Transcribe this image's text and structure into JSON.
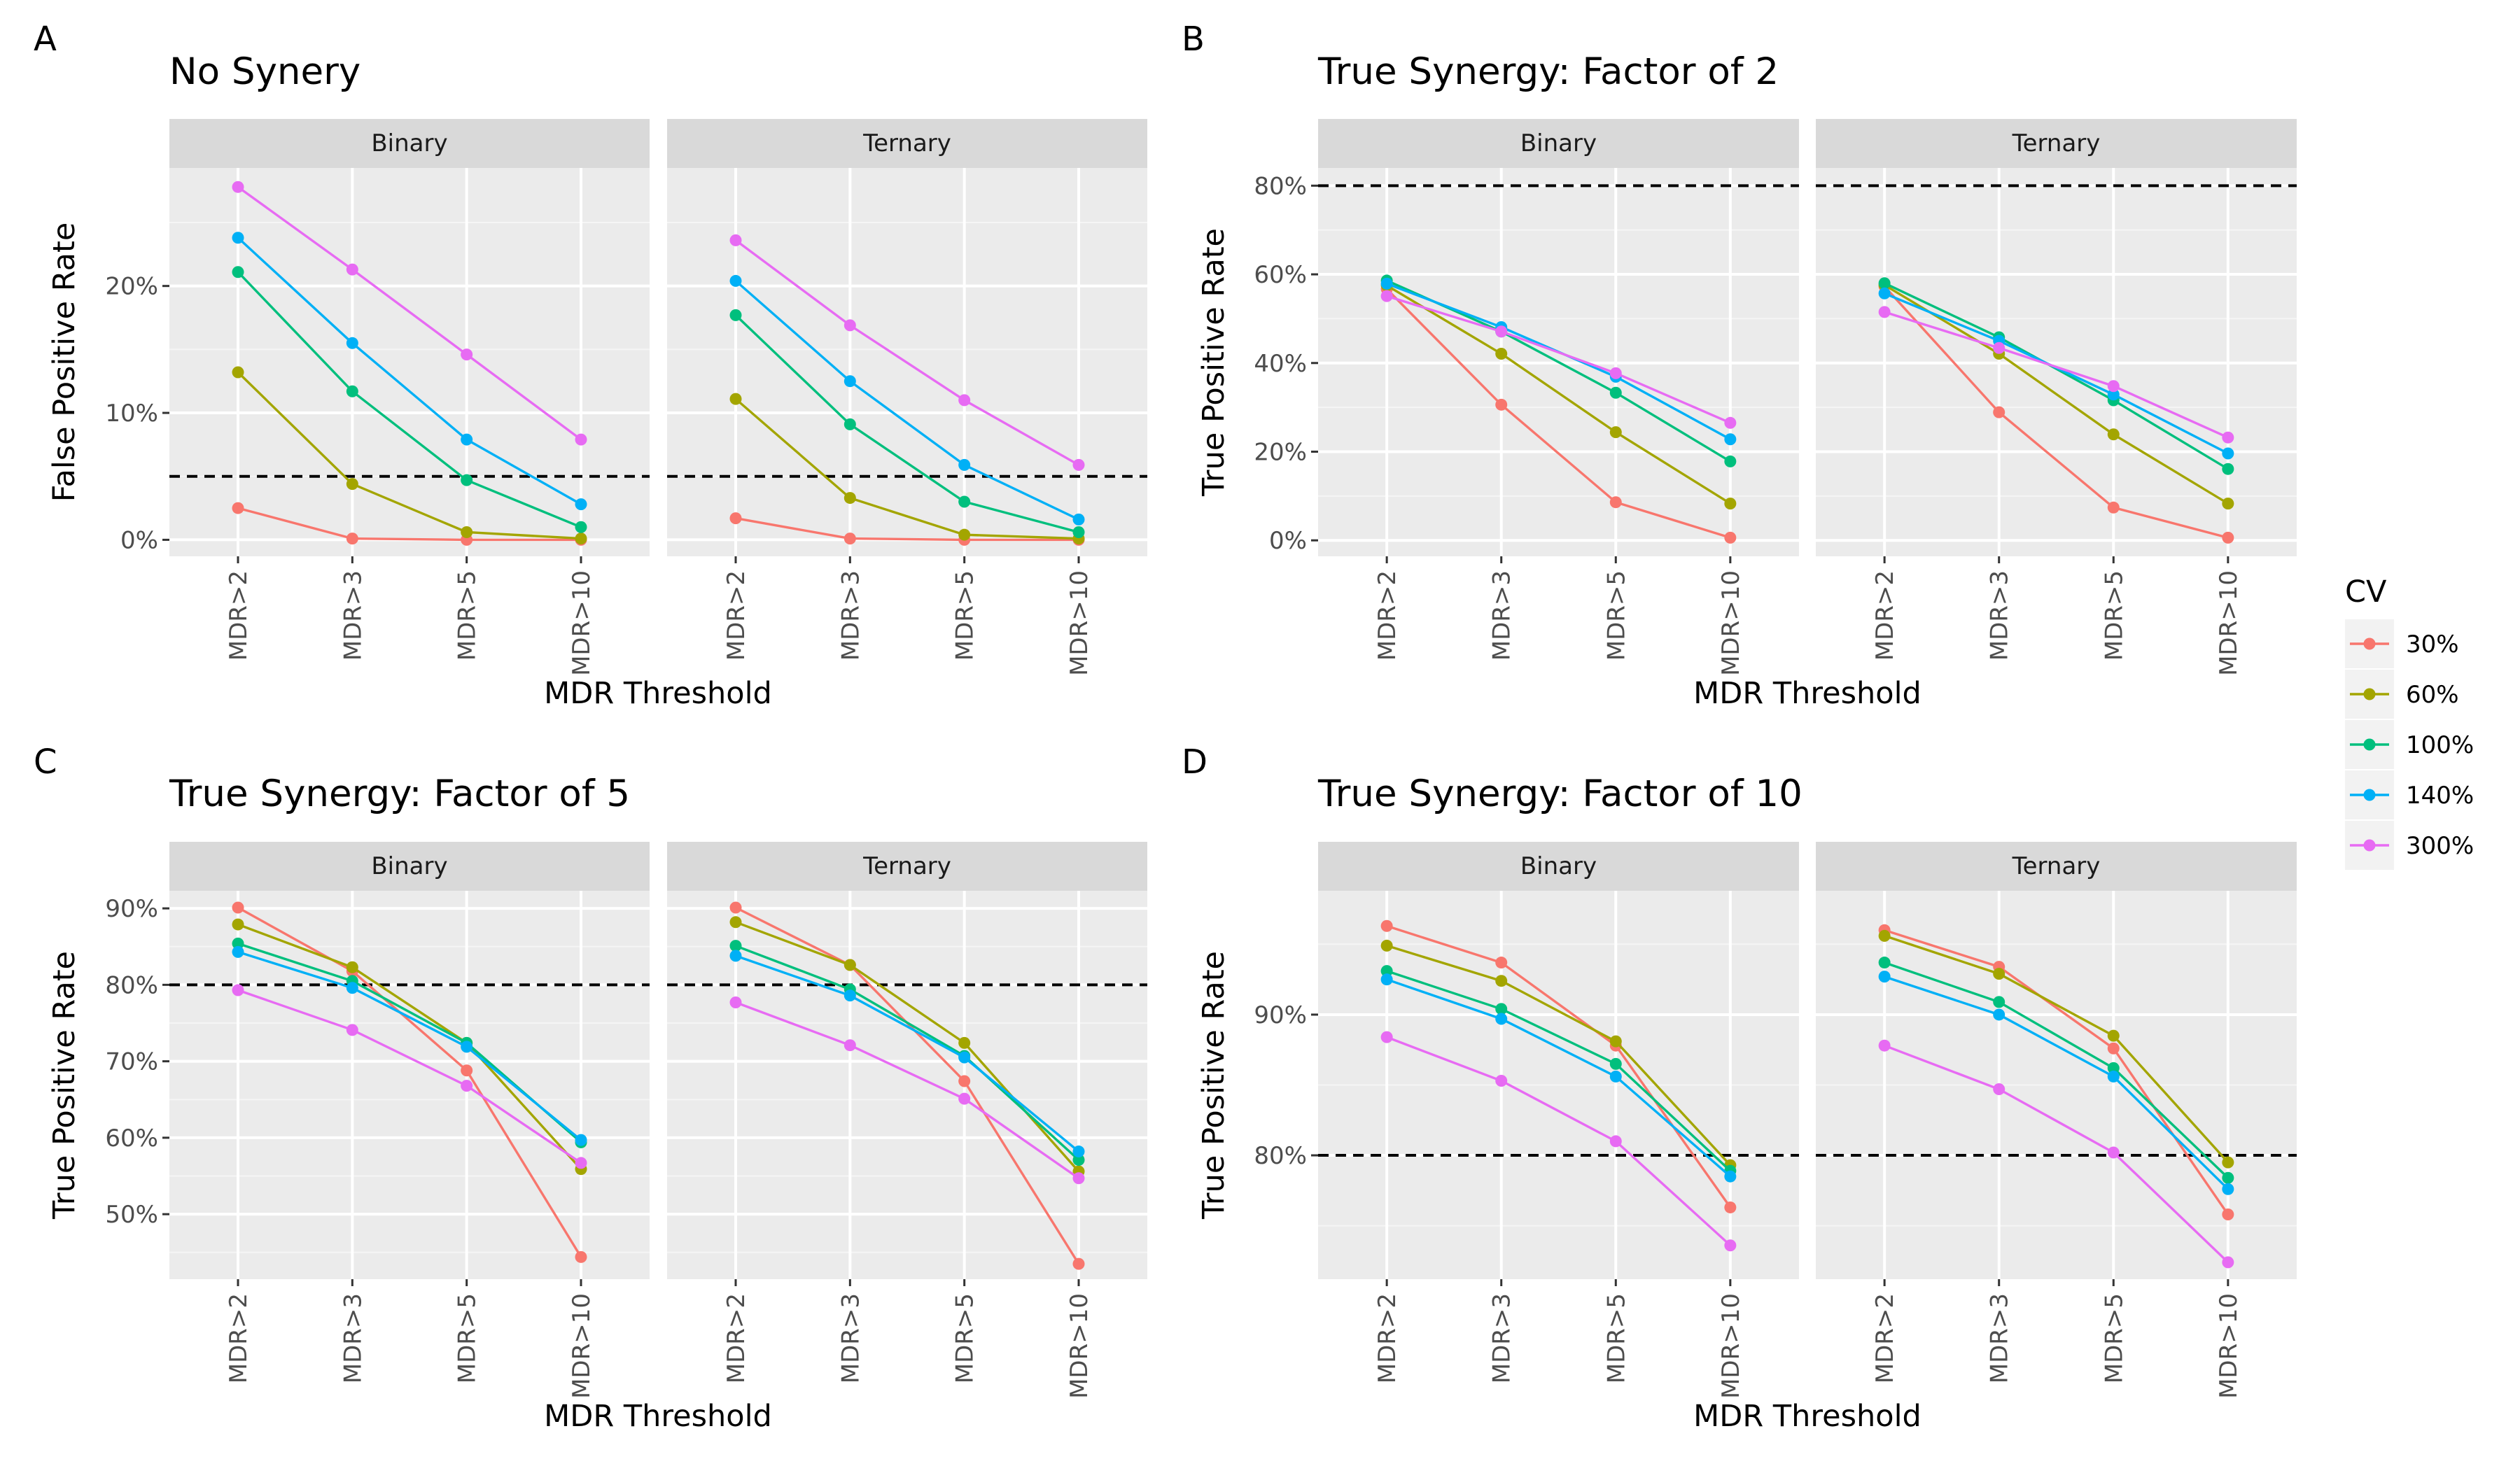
{
  "legend": {
    "title": "CV",
    "entries": [
      {
        "label": "30%",
        "color": "#F8766D"
      },
      {
        "label": "60%",
        "color": "#A3A500"
      },
      {
        "label": "100%",
        "color": "#00BF7D"
      },
      {
        "label": "140%",
        "color": "#00B0F6"
      },
      {
        "label": "300%",
        "color": "#E76BF3"
      }
    ]
  },
  "chart_data": [
    {
      "type": "line",
      "tag": "A",
      "title": "No Synery",
      "xlabel": "MDR Threshold",
      "ylabel": "False Positive Rate",
      "categories": [
        "MDR>2",
        "MDR>3",
        "MDR>5",
        "MDR>10"
      ],
      "ylim": [
        -1.3,
        29.3
      ],
      "yticks": [
        0,
        10,
        20
      ],
      "ytick_labels": [
        "0%",
        "10%",
        "20%"
      ],
      "reference_line": 5,
      "grid": true,
      "panels": [
        {
          "strip": "Binary",
          "series": [
            {
              "name": "30%",
              "values": [
                2.5,
                0.1,
                0.0,
                0.0
              ]
            },
            {
              "name": "60%",
              "values": [
                13.2,
                4.4,
                0.6,
                0.1
              ]
            },
            {
              "name": "100%",
              "values": [
                21.1,
                11.7,
                4.7,
                1.0
              ]
            },
            {
              "name": "140%",
              "values": [
                23.8,
                15.5,
                7.9,
                2.8
              ]
            },
            {
              "name": "300%",
              "values": [
                27.8,
                21.3,
                14.6,
                7.9
              ]
            }
          ]
        },
        {
          "strip": "Ternary",
          "series": [
            {
              "name": "30%",
              "values": [
                1.7,
                0.1,
                0.0,
                0.0
              ]
            },
            {
              "name": "60%",
              "values": [
                11.1,
                3.3,
                0.4,
                0.1
              ]
            },
            {
              "name": "100%",
              "values": [
                17.7,
                9.1,
                3.0,
                0.6
              ]
            },
            {
              "name": "140%",
              "values": [
                20.4,
                12.5,
                5.9,
                1.6
              ]
            },
            {
              "name": "300%",
              "values": [
                23.6,
                16.9,
                11.0,
                5.9
              ]
            }
          ]
        }
      ]
    },
    {
      "type": "line",
      "tag": "B",
      "title": "True Synergy: Factor of 2",
      "xlabel": "MDR Threshold",
      "ylabel": "True Positive Rate",
      "categories": [
        "MDR>2",
        "MDR>3",
        "MDR>5",
        "MDR>10"
      ],
      "ylim": [
        -3.6,
        84.0
      ],
      "yticks": [
        0,
        20,
        40,
        60,
        80
      ],
      "ytick_labels": [
        "0%",
        "20%",
        "40%",
        "60%",
        "80%"
      ],
      "reference_line": 80,
      "grid": true,
      "panels": [
        {
          "strip": "Binary",
          "series": [
            {
              "name": "30%",
              "values": [
                56.7,
                30.6,
                8.6,
                0.6
              ]
            },
            {
              "name": "60%",
              "values": [
                57.5,
                42.1,
                24.4,
                8.3
              ]
            },
            {
              "name": "100%",
              "values": [
                58.6,
                47.1,
                33.3,
                17.8
              ]
            },
            {
              "name": "140%",
              "values": [
                57.9,
                48.1,
                36.9,
                22.8
              ]
            },
            {
              "name": "300%",
              "values": [
                55.1,
                47.1,
                37.7,
                26.5
              ]
            }
          ]
        },
        {
          "strip": "Ternary",
          "series": [
            {
              "name": "30%",
              "values": [
                57.3,
                28.9,
                7.4,
                0.6
              ]
            },
            {
              "name": "60%",
              "values": [
                57.6,
                42.1,
                23.9,
                8.3
              ]
            },
            {
              "name": "100%",
              "values": [
                58.0,
                45.8,
                31.6,
                16.1
              ]
            },
            {
              "name": "140%",
              "values": [
                55.7,
                45.0,
                32.9,
                19.6
              ]
            },
            {
              "name": "300%",
              "values": [
                51.5,
                43.4,
                34.8,
                23.2
              ]
            }
          ]
        }
      ]
    },
    {
      "type": "line",
      "tag": "C",
      "title": "True Synergy: Factor of 5",
      "xlabel": "MDR Threshold",
      "ylabel": "True Positive Rate",
      "categories": [
        "MDR>2",
        "MDR>3",
        "MDR>5",
        "MDR>10"
      ],
      "ylim": [
        41.5,
        92.3
      ],
      "yticks": [
        50,
        60,
        70,
        80,
        90
      ],
      "ytick_labels": [
        "50%",
        "60%",
        "70%",
        "80%",
        "90%"
      ],
      "reference_line": 80,
      "grid": true,
      "panels": [
        {
          "strip": "Binary",
          "series": [
            {
              "name": "30%",
              "values": [
                90.1,
                81.8,
                68.8,
                44.4
              ]
            },
            {
              "name": "60%",
              "values": [
                87.9,
                82.3,
                72.4,
                55.9
              ]
            },
            {
              "name": "100%",
              "values": [
                85.4,
                80.5,
                72.4,
                59.4
              ]
            },
            {
              "name": "140%",
              "values": [
                84.3,
                79.6,
                71.9,
                59.7
              ]
            },
            {
              "name": "300%",
              "values": [
                79.3,
                74.1,
                66.8,
                56.7
              ]
            }
          ]
        },
        {
          "strip": "Ternary",
          "series": [
            {
              "name": "30%",
              "values": [
                90.1,
                82.6,
                67.4,
                43.5
              ]
            },
            {
              "name": "60%",
              "values": [
                88.2,
                82.6,
                72.4,
                55.6
              ]
            },
            {
              "name": "100%",
              "values": [
                85.1,
                79.4,
                70.7,
                57.1
              ]
            },
            {
              "name": "140%",
              "values": [
                83.8,
                78.6,
                70.5,
                58.2
              ]
            },
            {
              "name": "300%",
              "values": [
                77.7,
                72.1,
                65.1,
                54.7
              ]
            }
          ]
        }
      ]
    },
    {
      "type": "line",
      "tag": "D",
      "title": "True Synergy: Factor of 10",
      "xlabel": "MDR Threshold",
      "ylabel": "True Positive Rate",
      "categories": [
        "MDR>2",
        "MDR>3",
        "MDR>5",
        "MDR>10"
      ],
      "ylim": [
        71.2,
        98.8
      ],
      "yticks": [
        80,
        90
      ],
      "ytick_labels": [
        "80%",
        "90%"
      ],
      "reference_line": 80,
      "grid": true,
      "panels": [
        {
          "strip": "Binary",
          "series": [
            {
              "name": "30%",
              "values": [
                96.3,
                93.7,
                87.8,
                76.3
              ]
            },
            {
              "name": "60%",
              "values": [
                94.9,
                92.4,
                88.1,
                79.3
              ]
            },
            {
              "name": "100%",
              "values": [
                93.1,
                90.4,
                86.5,
                78.9
              ]
            },
            {
              "name": "140%",
              "values": [
                92.5,
                89.7,
                85.6,
                78.5
              ]
            },
            {
              "name": "300%",
              "values": [
                88.4,
                85.3,
                81.0,
                73.6
              ]
            }
          ]
        },
        {
          "strip": "Ternary",
          "series": [
            {
              "name": "30%",
              "values": [
                96.0,
                93.4,
                87.6,
                75.8
              ]
            },
            {
              "name": "60%",
              "values": [
                95.6,
                92.9,
                88.5,
                79.5
              ]
            },
            {
              "name": "100%",
              "values": [
                93.7,
                90.9,
                86.2,
                78.4
              ]
            },
            {
              "name": "140%",
              "values": [
                92.7,
                90.0,
                85.6,
                77.6
              ]
            },
            {
              "name": "300%",
              "values": [
                87.8,
                84.7,
                80.2,
                72.4
              ]
            }
          ]
        }
      ]
    }
  ]
}
